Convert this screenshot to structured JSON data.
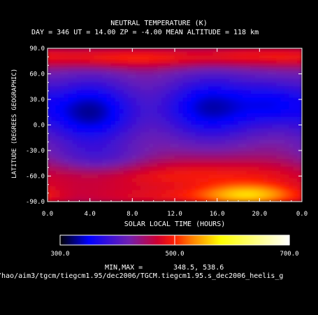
{
  "chart_data": {
    "type": "heatmap",
    "title": "NEUTRAL TEMPERATURE (K)",
    "subtitle": "DAY = 346   UT = 14.00   ZP =   -4.00   MEAN ALTITUDE = 118 km",
    "xlabel": "SOLAR LOCAL TIME (HOURS)",
    "ylabel": "LATITUDE (DEGREES GEOGRAPHIC)",
    "x_ticks": [
      "0.0",
      "4.0",
      "8.0",
      "12.0",
      "16.0",
      "20.0",
      "0.0"
    ],
    "y_ticks": [
      "90.0",
      "60.0",
      "30.0",
      "0.0",
      "-30.0",
      "-60.0",
      "-90.0"
    ],
    "xlim": [
      0,
      24
    ],
    "ylim": [
      -90,
      90
    ],
    "colorbar": {
      "ticks": [
        "300.0",
        "500.0",
        "700.0"
      ],
      "range": [
        300,
        700
      ],
      "stops": [
        {
          "v": 300,
          "c": "#000000"
        },
        {
          "v": 350,
          "c": "#0000ff"
        },
        {
          "v": 420,
          "c": "#7020b0"
        },
        {
          "v": 470,
          "c": "#d00030"
        },
        {
          "v": 500,
          "c": "#ff2000"
        },
        {
          "v": 530,
          "c": "#ff8000"
        },
        {
          "v": 580,
          "c": "#ffff00"
        },
        {
          "v": 640,
          "c": "#ffff80"
        },
        {
          "v": 700,
          "c": "#ffffff"
        }
      ]
    },
    "features": [
      {
        "name": "cool-region-dawn",
        "x": 4.0,
        "y": 15,
        "sx": 3.2,
        "sy": 28,
        "amp": -110
      },
      {
        "name": "cool-region-afternoon",
        "x": 15.5,
        "y": 20,
        "sx": 3.5,
        "sy": 28,
        "amp": -105
      },
      {
        "name": "cool-region-night",
        "x": 21.5,
        "y": 25,
        "sx": 2.2,
        "sy": 20,
        "amp": -55
      },
      {
        "name": "cool-region-dawn-south",
        "x": 5.0,
        "y": -45,
        "sx": 3.5,
        "sy": 15,
        "amp": -45
      },
      {
        "name": "warm-band-north",
        "x": 8.0,
        "y": 78,
        "sx": 6.0,
        "sy": 8,
        "amp": 60
      },
      {
        "name": "warm-band-north-late",
        "x": 20.0,
        "y": 80,
        "sx": 4.0,
        "sy": 8,
        "amp": 45
      },
      {
        "name": "warm-band-south",
        "x": 12.0,
        "y": -60,
        "sx": 14.0,
        "sy": 14,
        "amp": 55
      },
      {
        "name": "hot-spot-south",
        "x": 19.0,
        "y": -82,
        "sx": 3.0,
        "sy": 9,
        "amp": 85
      },
      {
        "name": "warm-south-edge",
        "x": 15.0,
        "y": -85,
        "sx": 9.0,
        "sy": 7,
        "amp": 35
      }
    ],
    "base_value": 440,
    "min": 348.5,
    "max": 538.6
  },
  "minmax": {
    "label": "MIN,MAX =",
    "values": "348.5,    538.6"
  },
  "filepath": "/hao/aim3/tgcm/tiegcm1.95/dec2006/TGCM.tiegcm1.95.s_dec2006_heelis_g"
}
